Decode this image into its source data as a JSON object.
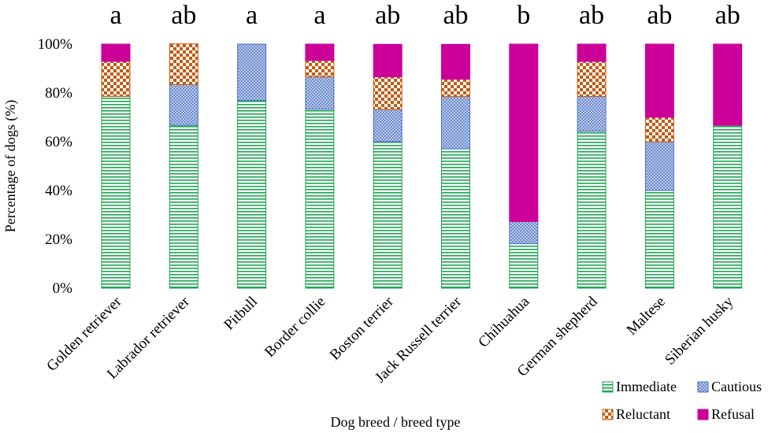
{
  "chart_data": {
    "type": "bar",
    "stacked": true,
    "percent": true,
    "xlabel": "Dog breed / breed type",
    "ylabel": "Percentage of dogs (%)",
    "ylim": [
      0,
      100
    ],
    "yticks": [
      "0%",
      "20%",
      "40%",
      "60%",
      "80%",
      "100%"
    ],
    "categories": [
      "Golden retriever",
      "Labrador retriever",
      "Pitbull",
      "Border collie",
      "Boston terrier",
      "Jack Russell terrier",
      "Chihuahua",
      "German shepherd",
      "Maltese",
      "Siberian husky"
    ],
    "significance_letters": [
      "a",
      "ab",
      "a",
      "a",
      "ab",
      "ab",
      "b",
      "ab",
      "ab",
      "ab"
    ],
    "series": [
      {
        "name": "Immediate",
        "color": "#1fa552",
        "pattern": "horizontal-lines",
        "values": [
          78.6,
          66.7,
          76.9,
          73.3,
          60.0,
          57.1,
          18.2,
          64.3,
          40.0,
          66.7
        ]
      },
      {
        "name": "Cautious",
        "color": "#4a72c4",
        "pattern": "dots",
        "values": [
          0.0,
          16.7,
          23.1,
          13.3,
          13.3,
          21.4,
          9.1,
          14.3,
          20.0,
          0.0
        ]
      },
      {
        "name": "Reluctant",
        "color": "#c55a11",
        "pattern": "checker",
        "values": [
          14.3,
          16.7,
          0.0,
          6.7,
          13.3,
          7.1,
          0.0,
          14.3,
          10.0,
          0.0
        ]
      },
      {
        "name": "Refusal",
        "color": "#cc0099",
        "pattern": "solid",
        "values": [
          7.1,
          0.0,
          0.0,
          6.7,
          13.3,
          14.3,
          72.7,
          7.1,
          30.0,
          33.3
        ]
      }
    ],
    "legend": [
      "Immediate",
      "Cautious",
      "Reluctant",
      "Refusal"
    ],
    "legend_position": "bottom-right",
    "grid": false
  }
}
